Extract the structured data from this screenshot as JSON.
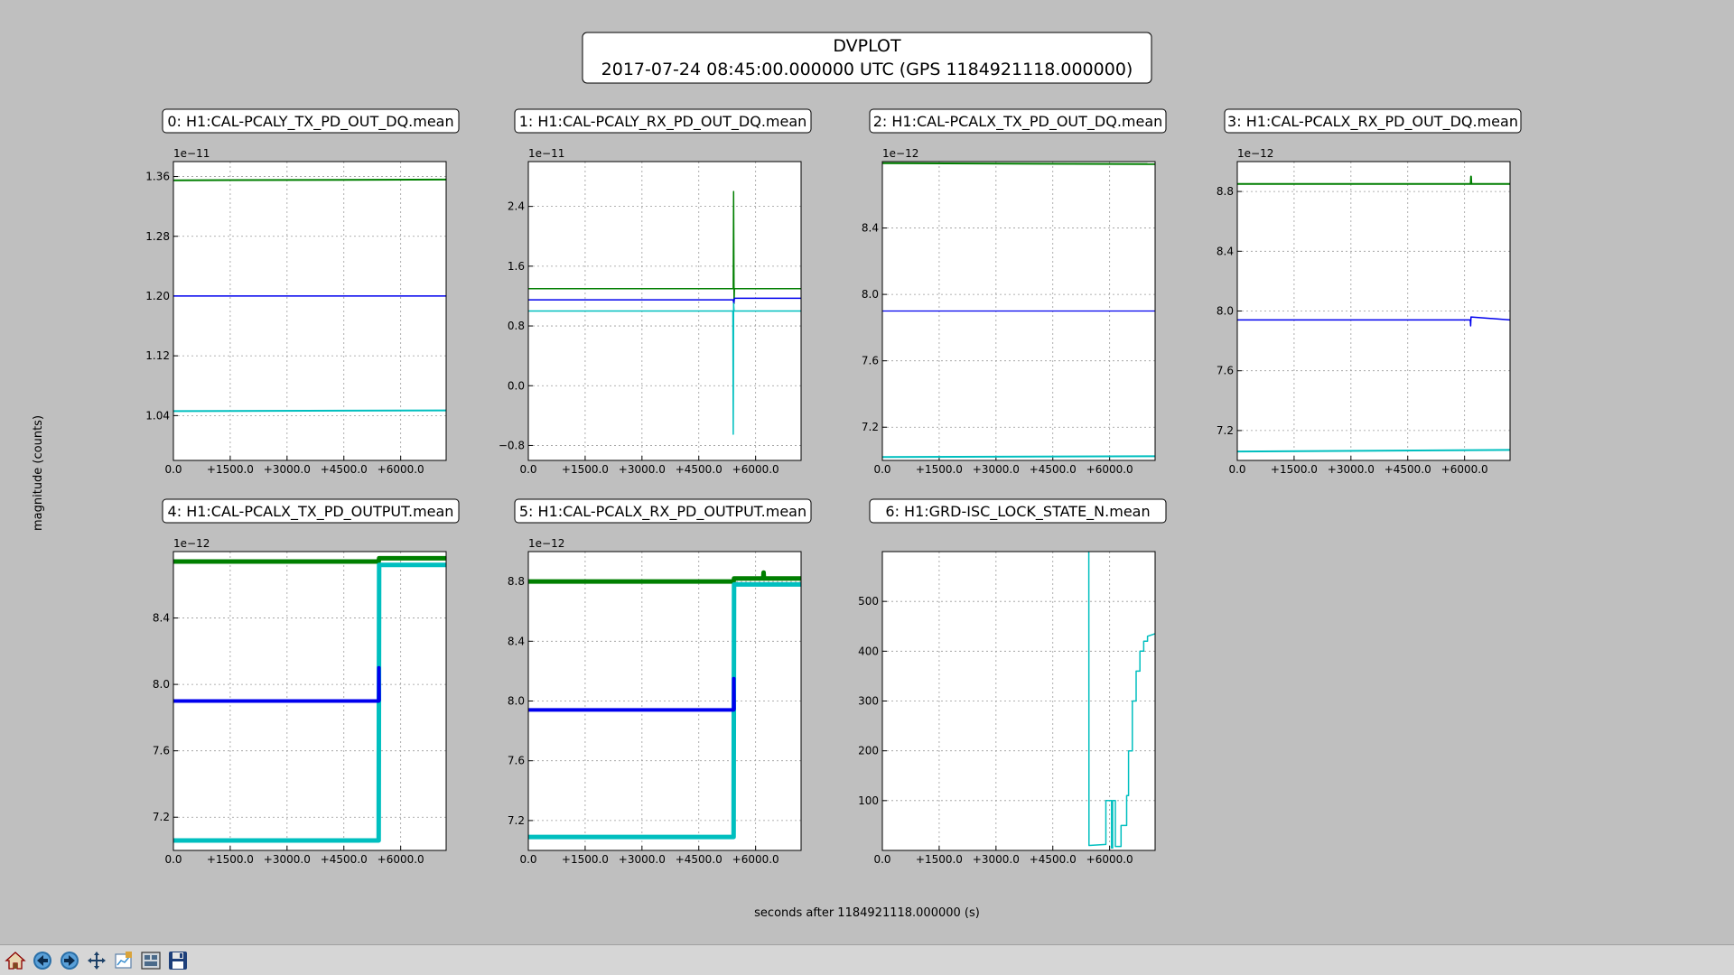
{
  "figure": {
    "title_line1": "DVPLOT",
    "title_line2": "2017-07-24 08:45:00.000000 UTC (GPS 1184921118.000000)",
    "ylabel": "magnitude (counts)",
    "xlabel": "seconds after 1184921118.000000 (s)",
    "colors": {
      "green": "#007f00",
      "blue": "#0000ee",
      "cyan": "#00bfbf"
    }
  },
  "toolbar": {
    "buttons": [
      {
        "name": "home-icon",
        "tip": "Home"
      },
      {
        "name": "back-icon",
        "tip": "Back"
      },
      {
        "name": "forward-icon",
        "tip": "Forward"
      },
      {
        "name": "pan-icon",
        "tip": "Pan"
      },
      {
        "name": "configure-icon",
        "tip": "Configure"
      },
      {
        "name": "subplots-icon",
        "tip": "Subplots"
      },
      {
        "name": "save-icon",
        "tip": "Save"
      }
    ]
  },
  "chart_data": [
    {
      "type": "line",
      "title": "0: H1:CAL-PCALY_TX_PD_OUT_DQ.mean",
      "offset_text": "1e−11",
      "xlim": [
        0,
        7200
      ],
      "ylim": [
        0.98,
        1.38
      ],
      "xticks": [
        0,
        1500,
        3000,
        4500,
        6000
      ],
      "xtick_labels": [
        "0.0",
        "+1500.0",
        "+3000.0",
        "+4500.0",
        "+6000.0"
      ],
      "yticks": [
        1.04,
        1.12,
        1.2,
        1.28,
        1.36
      ],
      "ytick_labels": [
        "1.04",
        "1.12",
        "1.20",
        "1.28",
        "1.36"
      ],
      "series": [
        {
          "color": "green",
          "width": 2,
          "x": [
            0,
            7200
          ],
          "y": [
            1.355,
            1.356
          ]
        },
        {
          "color": "blue",
          "width": 1.5,
          "x": [
            0,
            7200
          ],
          "y": [
            1.2,
            1.2
          ]
        },
        {
          "color": "cyan",
          "width": 2,
          "x": [
            0,
            7200
          ],
          "y": [
            1.046,
            1.047
          ]
        }
      ]
    },
    {
      "type": "line",
      "title": "1: H1:CAL-PCALY_RX_PD_OUT_DQ.mean",
      "offset_text": "1e−11",
      "xlim": [
        0,
        7200
      ],
      "ylim": [
        -1.0,
        3.0
      ],
      "xticks": [
        0,
        1500,
        3000,
        4500,
        6000
      ],
      "xtick_labels": [
        "0.0",
        "+1500.0",
        "+3000.0",
        "+4500.0",
        "+6000.0"
      ],
      "yticks": [
        -0.8,
        0.0,
        0.8,
        1.6,
        2.4
      ],
      "ytick_labels": [
        "−0.8",
        "0.0",
        "0.8",
        "1.6",
        "2.4"
      ],
      "series": [
        {
          "color": "green",
          "width": 1.5,
          "x": [
            0,
            5410,
            5420,
            5430,
            5440,
            7200
          ],
          "y": [
            1.3,
            1.3,
            2.6,
            1.1,
            1.3,
            1.3
          ]
        },
        {
          "color": "blue",
          "width": 1.5,
          "x": [
            0,
            5410,
            5425,
            5440,
            7200
          ],
          "y": [
            1.15,
            1.15,
            1.1,
            1.17,
            1.17
          ]
        },
        {
          "color": "cyan",
          "width": 1.5,
          "x": [
            0,
            5400,
            5410,
            5420,
            5430,
            7200
          ],
          "y": [
            1.0,
            1.0,
            -0.65,
            1.1,
            1.0,
            1.0
          ]
        }
      ]
    },
    {
      "type": "line",
      "title": "2: H1:CAL-PCALX_TX_PD_OUT_DQ.mean",
      "offset_text": "1e−12",
      "xlim": [
        0,
        7200
      ],
      "ylim": [
        7.0,
        8.8
      ],
      "xticks": [
        0,
        1500,
        3000,
        4500,
        6000
      ],
      "xtick_labels": [
        "0.0",
        "+1500.0",
        "+3000.0",
        "+4500.0",
        "+6000.0"
      ],
      "yticks": [
        7.2,
        7.6,
        8.0,
        8.4
      ],
      "ytick_labels": [
        "7.2",
        "7.6",
        "8.0",
        "8.4"
      ],
      "series": [
        {
          "color": "green",
          "width": 2,
          "x": [
            0,
            7200
          ],
          "y": [
            8.79,
            8.785
          ]
        },
        {
          "color": "blue",
          "width": 1.2,
          "x": [
            0,
            7200
          ],
          "y": [
            7.9,
            7.9
          ]
        },
        {
          "color": "cyan",
          "width": 2,
          "x": [
            0,
            7200
          ],
          "y": [
            7.02,
            7.025
          ]
        }
      ]
    },
    {
      "type": "line",
      "title": "3: H1:CAL-PCALX_RX_PD_OUT_DQ.mean",
      "offset_text": "1e−12",
      "xlim": [
        0,
        7200
      ],
      "ylim": [
        7.0,
        9.0
      ],
      "xticks": [
        0,
        1500,
        3000,
        4500,
        6000
      ],
      "xtick_labels": [
        "0.0",
        "+1500.0",
        "+3000.0",
        "+4500.0",
        "+6000.0"
      ],
      "yticks": [
        7.2,
        7.6,
        8.0,
        8.4,
        8.8
      ],
      "ytick_labels": [
        "7.2",
        "7.6",
        "8.0",
        "8.4",
        "8.8"
      ],
      "series": [
        {
          "color": "green",
          "width": 2,
          "x": [
            0,
            6160,
            6170,
            6180,
            7200
          ],
          "y": [
            8.85,
            8.85,
            8.9,
            8.85,
            8.85
          ]
        },
        {
          "color": "blue",
          "width": 1.5,
          "x": [
            0,
            6150,
            6160,
            6170,
            7200
          ],
          "y": [
            7.94,
            7.94,
            7.9,
            7.96,
            7.94
          ]
        },
        {
          "color": "cyan",
          "width": 2,
          "x": [
            0,
            7200
          ],
          "y": [
            7.06,
            7.07
          ]
        }
      ]
    },
    {
      "type": "line",
      "title": "4: H1:CAL-PCALX_TX_PD_OUTPUT.mean",
      "offset_text": "1e−12",
      "xlim": [
        0,
        7200
      ],
      "ylim": [
        7.0,
        8.8
      ],
      "xticks": [
        0,
        1500,
        3000,
        4500,
        6000
      ],
      "xtick_labels": [
        "0.0",
        "+1500.0",
        "+3000.0",
        "+4500.0",
        "+6000.0"
      ],
      "yticks": [
        7.2,
        7.6,
        8.0,
        8.4
      ],
      "ytick_labels": [
        "7.2",
        "7.6",
        "8.0",
        "8.4"
      ],
      "series": [
        {
          "color": "green",
          "width": 5,
          "x": [
            0,
            5420,
            5430,
            7200
          ],
          "y": [
            8.74,
            8.74,
            8.76,
            8.76
          ]
        },
        {
          "color": "cyan",
          "width": 5,
          "x": [
            0,
            5420,
            5430,
            7200
          ],
          "y": [
            7.06,
            7.06,
            8.72,
            8.72
          ]
        },
        {
          "color": "blue",
          "width": 4,
          "x": [
            0,
            5420,
            5425,
            5430
          ],
          "y": [
            7.9,
            7.9,
            8.1,
            7.9
          ]
        }
      ]
    },
    {
      "type": "line",
      "title": "5: H1:CAL-PCALX_RX_PD_OUTPUT.mean",
      "offset_text": "1e−12",
      "xlim": [
        0,
        7200
      ],
      "ylim": [
        7.0,
        9.0
      ],
      "xticks": [
        0,
        1500,
        3000,
        4500,
        6000
      ],
      "xtick_labels": [
        "0.0",
        "+1500.0",
        "+3000.0",
        "+4500.0",
        "+6000.0"
      ],
      "yticks": [
        7.2,
        7.6,
        8.0,
        8.4,
        8.8
      ],
      "ytick_labels": [
        "7.2",
        "7.6",
        "8.0",
        "8.4",
        "8.8"
      ],
      "series": [
        {
          "color": "green",
          "width": 5,
          "x": [
            0,
            5420,
            5430,
            6200,
            6210,
            6220,
            7200
          ],
          "y": [
            8.8,
            8.8,
            8.82,
            8.82,
            8.86,
            8.82,
            8.82
          ]
        },
        {
          "color": "cyan",
          "width": 5,
          "x": [
            0,
            5420,
            5430,
            7200
          ],
          "y": [
            7.09,
            7.09,
            8.78,
            8.78
          ]
        },
        {
          "color": "blue",
          "width": 4,
          "x": [
            0,
            5420,
            5425,
            5430
          ],
          "y": [
            7.94,
            7.94,
            8.15,
            7.94
          ]
        }
      ]
    },
    {
      "type": "line",
      "title": "6: H1:GRD-ISC_LOCK_STATE_N.mean",
      "offset_text": "",
      "xlim": [
        0,
        7200
      ],
      "ylim": [
        0,
        600
      ],
      "xticks": [
        0,
        1500,
        3000,
        4500,
        6000
      ],
      "xtick_labels": [
        "0.0",
        "+1500.0",
        "+3000.0",
        "+4500.0",
        "+6000.0"
      ],
      "yticks": [
        100,
        200,
        300,
        400,
        500
      ],
      "ytick_labels": [
        "100",
        "200",
        "300",
        "400",
        "500"
      ],
      "series": [
        {
          "color": "cyan",
          "width": 1.5,
          "x": [
            5450,
            5455,
            5460,
            5900,
            5900,
            6050,
            6050,
            6080,
            6080,
            6150,
            6150,
            6300,
            6300,
            6450,
            6450,
            6500,
            6500,
            6600,
            6600,
            6700,
            6700,
            6800,
            6800,
            6900,
            6900,
            7000,
            7000,
            7200
          ],
          "y": [
            600,
            10,
            10,
            12,
            100,
            100,
            5,
            5,
            100,
            100,
            8,
            8,
            50,
            50,
            110,
            110,
            200,
            200,
            300,
            300,
            360,
            360,
            400,
            400,
            420,
            420,
            430,
            435
          ]
        }
      ]
    }
  ]
}
